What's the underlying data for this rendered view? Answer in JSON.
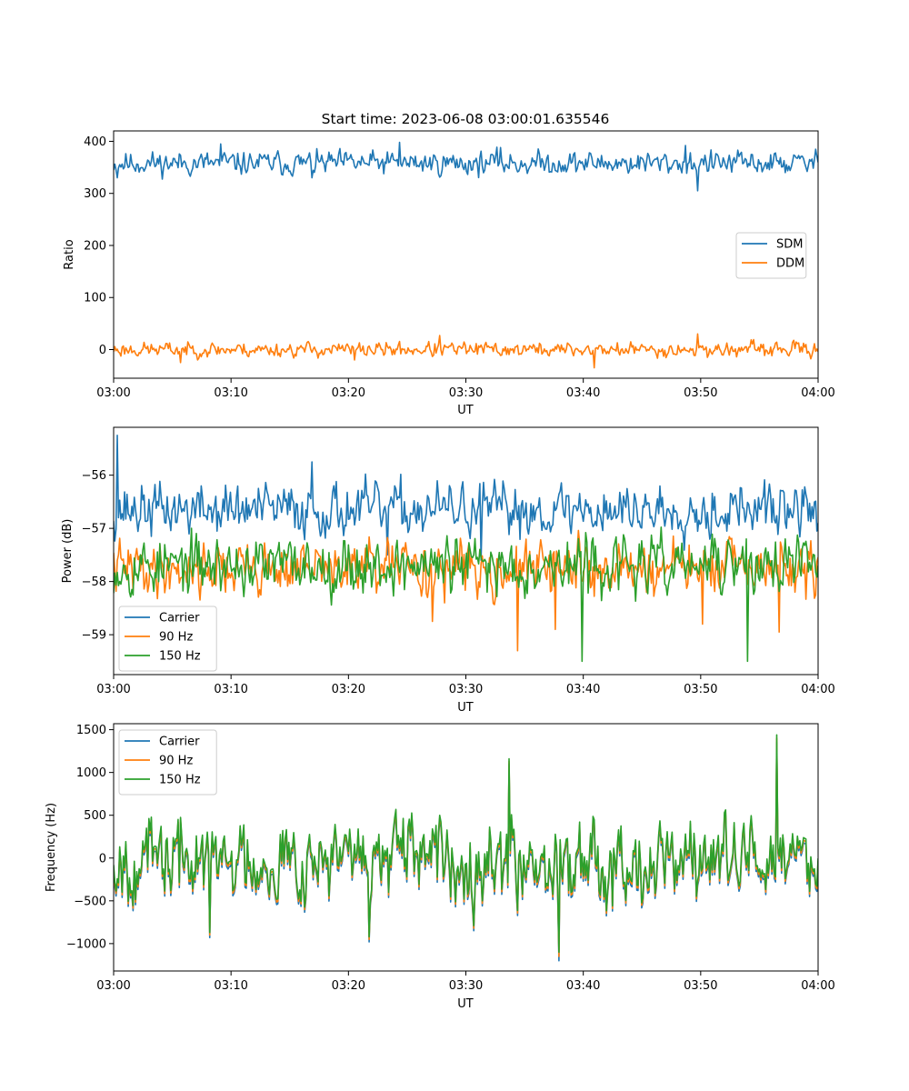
{
  "chart_data": [
    {
      "type": "line",
      "title": "Start time: 2023-06-08 03:00:01.635546",
      "xlabel": "UT",
      "ylabel": "Ratio",
      "x_range": [
        "03:00",
        "04:00"
      ],
      "xticks": [
        "03:00",
        "03:10",
        "03:20",
        "03:30",
        "03:40",
        "03:50",
        "04:00"
      ],
      "ylim": [
        -55,
        420
      ],
      "yticks": [
        0,
        100,
        200,
        300,
        400
      ],
      "legend_position": "center-right",
      "series": [
        {
          "name": "SDM",
          "color": "#1f77b4",
          "base": 358,
          "amplitude": 16,
          "seed": 11,
          "spikes": [
            [
              3,
              330
            ],
            [
              88,
              395
            ],
            [
              163,
              330
            ],
            [
              235,
              398
            ],
            [
              318,
              388
            ],
            [
              376,
              358
            ],
            [
              480,
              305
            ],
            [
              470,
              392
            ]
          ]
        },
        {
          "name": "DDM",
          "color": "#ff7f0e",
          "base": 0,
          "amplitude": 10,
          "seed": 23,
          "spikes": [
            [
              55,
              -25
            ],
            [
              198,
              -20
            ],
            [
              268,
              27
            ],
            [
              395,
              -35
            ],
            [
              480,
              30
            ],
            [
              500,
              -10
            ]
          ]
        }
      ]
    },
    {
      "type": "line",
      "title": "",
      "xlabel": "UT",
      "ylabel": "Power (dB)",
      "x_range": [
        "03:00",
        "04:00"
      ],
      "xticks": [
        "03:00",
        "03:10",
        "03:20",
        "03:30",
        "03:40",
        "03:50",
        "04:00"
      ],
      "ylim": [
        -59.75,
        -55.1
      ],
      "yticks": [
        -59,
        -58,
        -57,
        -56
      ],
      "legend_position": "lower-left",
      "series": [
        {
          "name": "Carrier",
          "color": "#1f77b4",
          "base": -56.65,
          "amplitude": 0.35,
          "seed": 37,
          "spikes": [
            [
              3,
              -55.25
            ],
            [
              163,
              -55.75
            ],
            [
              225,
              -57.5
            ],
            [
              302,
              -57.6
            ],
            [
              558,
              -56.8
            ]
          ]
        },
        {
          "name": "90 Hz",
          "color": "#ff7f0e",
          "base": -57.75,
          "amplitude": 0.35,
          "seed": 41,
          "spikes": [
            [
              262,
              -58.75
            ],
            [
              272,
              -58.4
            ],
            [
              332,
              -59.3
            ],
            [
              363,
              -58.9
            ],
            [
              484,
              -58.8
            ],
            [
              547,
              -58.95
            ],
            [
              560,
              -58.2
            ]
          ]
        },
        {
          "name": "150 Hz",
          "color": "#2ca02c",
          "base": -57.7,
          "amplitude": 0.38,
          "seed": 53,
          "spikes": [
            [
              385,
              -59.5
            ],
            [
              521,
              -59.5
            ],
            [
              420,
              -57.2
            ],
            [
              552,
              -57.2
            ]
          ]
        }
      ]
    },
    {
      "type": "line",
      "title": "",
      "xlabel": "UT",
      "ylabel": "Frequency (Hz)",
      "x_range": [
        "03:00",
        "04:00"
      ],
      "xticks": [
        "03:00",
        "03:10",
        "03:20",
        "03:30",
        "03:40",
        "03:50",
        "04:00"
      ],
      "ylim": [
        -1320,
        1570
      ],
      "yticks": [
        -1000,
        -500,
        0,
        500,
        1000,
        1500
      ],
      "legend_position": "upper-left",
      "series": [
        {
          "name": "Carrier",
          "color": "#1f77b4",
          "base": -60,
          "amplitude": 330,
          "seed": 67,
          "spikes": [
            [
              79,
              -930
            ],
            [
              210,
              -980
            ],
            [
              366,
              -1200
            ],
            [
              325,
              1100
            ],
            [
              545,
              1350
            ]
          ]
        },
        {
          "name": "90 Hz",
          "color": "#ff7f0e",
          "base": -30,
          "amplitude": 330,
          "seed": 67,
          "spikes": [
            [
              79,
              -900
            ],
            [
              210,
              -950
            ],
            [
              366,
              -1150
            ],
            [
              325,
              1130
            ],
            [
              545,
              1400
            ]
          ]
        },
        {
          "name": "150 Hz",
          "color": "#2ca02c",
          "base": 0,
          "amplitude": 330,
          "seed": 67,
          "spikes": [
            [
              79,
              -870
            ],
            [
              210,
              -920
            ],
            [
              366,
              -1100
            ],
            [
              325,
              1160
            ],
            [
              545,
              1440
            ]
          ]
        }
      ]
    }
  ]
}
